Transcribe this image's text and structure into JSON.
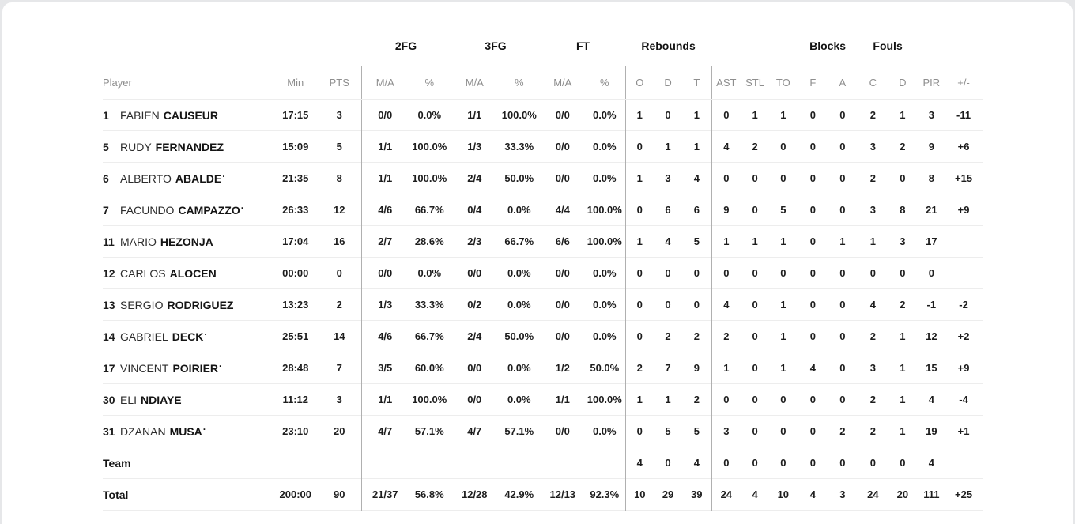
{
  "colors": {
    "page_background": "#e6e7e9",
    "card_background": "#ffffff",
    "vertical_divider": "#b0b0b0",
    "row_line": "#ededed",
    "header_text": "#8e8e8e",
    "data_text": "#1d1d1d"
  },
  "table": {
    "starter_indicator": "·",
    "groups": {
      "fg2": "2FG",
      "fg3": "3FG",
      "ft": "FT",
      "rebounds": "Rebounds",
      "blocks": "Blocks",
      "fouls": "Fouls"
    },
    "cols": {
      "player": "Player",
      "min": "Min",
      "pts": "PTS",
      "ma": "M/A",
      "pct": "%",
      "o": "O",
      "d": "D",
      "t": "T",
      "ast": "AST",
      "stl": "STL",
      "to": "TO",
      "f": "F",
      "a": "A",
      "c": "C",
      "d2": "D",
      "pir": "PIR",
      "pm": "+/-"
    },
    "rows": [
      {
        "type": "player",
        "number": "1",
        "first": "FABIEN",
        "last": "CAUSEUR",
        "starter": false,
        "min": "17:15",
        "pts": "3",
        "fg2_ma": "0/0",
        "fg2_pct": "0.0%",
        "fg3_ma": "1/1",
        "fg3_pct": "100.0%",
        "ft_ma": "0/0",
        "ft_pct": "0.0%",
        "reb_o": "1",
        "reb_d": "0",
        "reb_t": "1",
        "ast": "0",
        "stl": "1",
        "to": "1",
        "blk_f": "0",
        "blk_a": "0",
        "foul_c": "2",
        "foul_d": "1",
        "pir": "3",
        "pm": "-11"
      },
      {
        "type": "player",
        "number": "5",
        "first": "RUDY",
        "last": "FERNANDEZ",
        "starter": false,
        "min": "15:09",
        "pts": "5",
        "fg2_ma": "1/1",
        "fg2_pct": "100.0%",
        "fg3_ma": "1/3",
        "fg3_pct": "33.3%",
        "ft_ma": "0/0",
        "ft_pct": "0.0%",
        "reb_o": "0",
        "reb_d": "1",
        "reb_t": "1",
        "ast": "4",
        "stl": "2",
        "to": "0",
        "blk_f": "0",
        "blk_a": "0",
        "foul_c": "3",
        "foul_d": "2",
        "pir": "9",
        "pm": "+6"
      },
      {
        "type": "player",
        "number": "6",
        "first": "ALBERTO",
        "last": "ABALDE",
        "starter": true,
        "min": "21:35",
        "pts": "8",
        "fg2_ma": "1/1",
        "fg2_pct": "100.0%",
        "fg3_ma": "2/4",
        "fg3_pct": "50.0%",
        "ft_ma": "0/0",
        "ft_pct": "0.0%",
        "reb_o": "1",
        "reb_d": "3",
        "reb_t": "4",
        "ast": "0",
        "stl": "0",
        "to": "0",
        "blk_f": "0",
        "blk_a": "0",
        "foul_c": "2",
        "foul_d": "0",
        "pir": "8",
        "pm": "+15"
      },
      {
        "type": "player",
        "number": "7",
        "first": "FACUNDO",
        "last": "CAMPAZZO",
        "starter": true,
        "min": "26:33",
        "pts": "12",
        "fg2_ma": "4/6",
        "fg2_pct": "66.7%",
        "fg3_ma": "0/4",
        "fg3_pct": "0.0%",
        "ft_ma": "4/4",
        "ft_pct": "100.0%",
        "reb_o": "0",
        "reb_d": "6",
        "reb_t": "6",
        "ast": "9",
        "stl": "0",
        "to": "5",
        "blk_f": "0",
        "blk_a": "0",
        "foul_c": "3",
        "foul_d": "8",
        "pir": "21",
        "pm": "+9"
      },
      {
        "type": "player",
        "number": "11",
        "first": "MARIO",
        "last": "HEZONJA",
        "starter": false,
        "min": "17:04",
        "pts": "16",
        "fg2_ma": "2/7",
        "fg2_pct": "28.6%",
        "fg3_ma": "2/3",
        "fg3_pct": "66.7%",
        "ft_ma": "6/6",
        "ft_pct": "100.0%",
        "reb_o": "1",
        "reb_d": "4",
        "reb_t": "5",
        "ast": "1",
        "stl": "1",
        "to": "1",
        "blk_f": "0",
        "blk_a": "1",
        "foul_c": "1",
        "foul_d": "3",
        "pir": "17",
        "pm": ""
      },
      {
        "type": "player",
        "number": "12",
        "first": "CARLOS",
        "last": "ALOCEN",
        "starter": false,
        "min": "00:00",
        "pts": "0",
        "fg2_ma": "0/0",
        "fg2_pct": "0.0%",
        "fg3_ma": "0/0",
        "fg3_pct": "0.0%",
        "ft_ma": "0/0",
        "ft_pct": "0.0%",
        "reb_o": "0",
        "reb_d": "0",
        "reb_t": "0",
        "ast": "0",
        "stl": "0",
        "to": "0",
        "blk_f": "0",
        "blk_a": "0",
        "foul_c": "0",
        "foul_d": "0",
        "pir": "0",
        "pm": ""
      },
      {
        "type": "player",
        "number": "13",
        "first": "SERGIO",
        "last": "RODRIGUEZ",
        "starter": false,
        "min": "13:23",
        "pts": "2",
        "fg2_ma": "1/3",
        "fg2_pct": "33.3%",
        "fg3_ma": "0/2",
        "fg3_pct": "0.0%",
        "ft_ma": "0/0",
        "ft_pct": "0.0%",
        "reb_o": "0",
        "reb_d": "0",
        "reb_t": "0",
        "ast": "4",
        "stl": "0",
        "to": "1",
        "blk_f": "0",
        "blk_a": "0",
        "foul_c": "4",
        "foul_d": "2",
        "pir": "-1",
        "pm": "-2"
      },
      {
        "type": "player",
        "number": "14",
        "first": "GABRIEL",
        "last": "DECK",
        "starter": true,
        "min": "25:51",
        "pts": "14",
        "fg2_ma": "4/6",
        "fg2_pct": "66.7%",
        "fg3_ma": "2/4",
        "fg3_pct": "50.0%",
        "ft_ma": "0/0",
        "ft_pct": "0.0%",
        "reb_o": "0",
        "reb_d": "2",
        "reb_t": "2",
        "ast": "2",
        "stl": "0",
        "to": "1",
        "blk_f": "0",
        "blk_a": "0",
        "foul_c": "2",
        "foul_d": "1",
        "pir": "12",
        "pm": "+2"
      },
      {
        "type": "player",
        "number": "17",
        "first": "VINCENT",
        "last": "POIRIER",
        "starter": true,
        "min": "28:48",
        "pts": "7",
        "fg2_ma": "3/5",
        "fg2_pct": "60.0%",
        "fg3_ma": "0/0",
        "fg3_pct": "0.0%",
        "ft_ma": "1/2",
        "ft_pct": "50.0%",
        "reb_o": "2",
        "reb_d": "7",
        "reb_t": "9",
        "ast": "1",
        "stl": "0",
        "to": "1",
        "blk_f": "4",
        "blk_a": "0",
        "foul_c": "3",
        "foul_d": "1",
        "pir": "15",
        "pm": "+9"
      },
      {
        "type": "player",
        "number": "30",
        "first": "ELI",
        "last": "NDIAYE",
        "starter": false,
        "min": "11:12",
        "pts": "3",
        "fg2_ma": "1/1",
        "fg2_pct": "100.0%",
        "fg3_ma": "0/0",
        "fg3_pct": "0.0%",
        "ft_ma": "1/1",
        "ft_pct": "100.0%",
        "reb_o": "1",
        "reb_d": "1",
        "reb_t": "2",
        "ast": "0",
        "stl": "0",
        "to": "0",
        "blk_f": "0",
        "blk_a": "0",
        "foul_c": "2",
        "foul_d": "1",
        "pir": "4",
        "pm": "-4"
      },
      {
        "type": "player",
        "number": "31",
        "first": "DZANAN",
        "last": "MUSA",
        "starter": true,
        "min": "23:10",
        "pts": "20",
        "fg2_ma": "4/7",
        "fg2_pct": "57.1%",
        "fg3_ma": "4/7",
        "fg3_pct": "57.1%",
        "ft_ma": "0/0",
        "ft_pct": "0.0%",
        "reb_o": "0",
        "reb_d": "5",
        "reb_t": "5",
        "ast": "3",
        "stl": "0",
        "to": "0",
        "blk_f": "0",
        "blk_a": "2",
        "foul_c": "2",
        "foul_d": "1",
        "pir": "19",
        "pm": "+1"
      },
      {
        "type": "team",
        "number": "",
        "first": "",
        "last": "Team",
        "starter": false,
        "min": "",
        "pts": "",
        "fg2_ma": "",
        "fg2_pct": "",
        "fg3_ma": "",
        "fg3_pct": "",
        "ft_ma": "",
        "ft_pct": "",
        "reb_o": "4",
        "reb_d": "0",
        "reb_t": "4",
        "ast": "0",
        "stl": "0",
        "to": "0",
        "blk_f": "0",
        "blk_a": "0",
        "foul_c": "0",
        "foul_d": "0",
        "pir": "4",
        "pm": ""
      },
      {
        "type": "total",
        "number": "",
        "first": "",
        "last": "Total",
        "starter": false,
        "min": "200:00",
        "pts": "90",
        "fg2_ma": "21/37",
        "fg2_pct": "56.8%",
        "fg3_ma": "12/28",
        "fg3_pct": "42.9%",
        "ft_ma": "12/13",
        "ft_pct": "92.3%",
        "reb_o": "10",
        "reb_d": "29",
        "reb_t": "39",
        "ast": "24",
        "stl": "4",
        "to": "10",
        "blk_f": "4",
        "blk_a": "3",
        "foul_c": "24",
        "foul_d": "20",
        "pir": "111",
        "pm": "+25"
      }
    ]
  }
}
